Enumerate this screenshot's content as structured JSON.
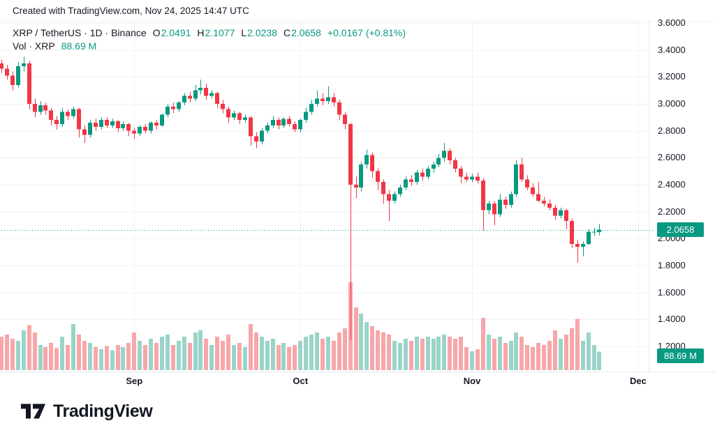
{
  "header": {
    "attribution": "Created with TradingView.com, Nov 24, 2025 14:47 UTC"
  },
  "legend": {
    "title": "XRP / TetherUS · 1D · Binance",
    "ohlc": [
      {
        "label": "O",
        "value": "2.0491"
      },
      {
        "label": "H",
        "value": "2.1077"
      },
      {
        "label": "L",
        "value": "2.0238"
      },
      {
        "label": "C",
        "value": "2.0658"
      }
    ],
    "change": "+0.0167 (+0.81%)",
    "vol_label": "Vol · XRP",
    "vol_value": "88.69 M"
  },
  "price_axis": {
    "ticks": [
      "3.6000",
      "3.4000",
      "3.2000",
      "3.0000",
      "2.8000",
      "2.6000",
      "2.4000",
      "2.2000",
      "2.0000",
      "1.8000",
      "1.6000",
      "1.4000",
      "1.2000"
    ],
    "last_price_label": "2.0658",
    "last_volume_label": "88.69 M"
  },
  "time_axis": {
    "months": [
      {
        "label": "Sep",
        "index": 24
      },
      {
        "label": "Oct",
        "index": 54
      },
      {
        "label": "Nov",
        "index": 85
      },
      {
        "label": "Dec",
        "index": 115
      }
    ]
  },
  "logo": {
    "text": "TradingView"
  },
  "chart_data": {
    "type": "candlestick",
    "title": "XRP / TetherUS · 1D · Binance",
    "y_axis_range": [
      1.2,
      3.6
    ],
    "y_tick_step": 0.2,
    "grid": true,
    "last_price": 2.0658,
    "last_volume_millions": 88.69,
    "volume_overlay": true,
    "colors": {
      "up": "#089981",
      "down": "#f23645",
      "vol_up": "#9ad4c9",
      "vol_down": "#f7a6a9",
      "grid": "#f0f2f6",
      "price_line": "#089981",
      "label_bg": "#089981",
      "text": "#131722"
    },
    "candles_format": [
      "date",
      "open",
      "high",
      "low",
      "close",
      "volume_millions"
    ],
    "candles": [
      [
        "Aug 8",
        3.3,
        3.33,
        3.23,
        3.26,
        160
      ],
      [
        "Aug 9",
        3.26,
        3.29,
        3.18,
        3.21,
        170
      ],
      [
        "Aug 10",
        3.21,
        3.24,
        3.1,
        3.14,
        150
      ],
      [
        "Aug 11",
        3.14,
        3.31,
        3.12,
        3.28,
        140
      ],
      [
        "Aug 12",
        3.28,
        3.35,
        3.24,
        3.3,
        190
      ],
      [
        "Aug 13",
        3.3,
        3.32,
        2.96,
        3.0,
        215
      ],
      [
        "Aug 14",
        3.0,
        3.04,
        2.9,
        2.94,
        180
      ],
      [
        "Aug 15",
        2.94,
        3.02,
        2.92,
        2.99,
        120
      ],
      [
        "Aug 16",
        2.99,
        3.01,
        2.92,
        2.95,
        110
      ],
      [
        "Aug 17",
        2.95,
        2.97,
        2.84,
        2.88,
        130
      ],
      [
        "Aug 18",
        2.88,
        2.91,
        2.81,
        2.85,
        105
      ],
      [
        "Aug 19",
        2.85,
        2.97,
        2.83,
        2.94,
        160
      ],
      [
        "Aug 20",
        2.94,
        2.96,
        2.88,
        2.91,
        120
      ],
      [
        "Aug 21",
        2.91,
        2.98,
        2.89,
        2.96,
        220
      ],
      [
        "Aug 22",
        2.96,
        2.97,
        2.75,
        2.81,
        170
      ],
      [
        "Aug 23",
        2.81,
        2.84,
        2.71,
        2.77,
        140
      ],
      [
        "Aug 24",
        2.77,
        2.88,
        2.75,
        2.86,
        130
      ],
      [
        "Aug 25",
        2.86,
        2.89,
        2.8,
        2.83,
        110
      ],
      [
        "Aug 26",
        2.83,
        2.9,
        2.81,
        2.88,
        100
      ],
      [
        "Aug 27",
        2.88,
        2.9,
        2.82,
        2.84,
        115
      ],
      [
        "Aug 28",
        2.84,
        2.89,
        2.82,
        2.87,
        95
      ],
      [
        "Aug 29",
        2.87,
        2.88,
        2.79,
        2.82,
        120
      ],
      [
        "Aug 30",
        2.82,
        2.87,
        2.8,
        2.85,
        110
      ],
      [
        "Aug 31",
        2.85,
        2.86,
        2.76,
        2.8,
        130
      ],
      [
        "Sep 1",
        2.8,
        2.82,
        2.74,
        2.78,
        180
      ],
      [
        "Sep 2",
        2.78,
        2.84,
        2.76,
        2.83,
        140
      ],
      [
        "Sep 3",
        2.83,
        2.85,
        2.78,
        2.8,
        120
      ],
      [
        "Sep 4",
        2.8,
        2.87,
        2.78,
        2.86,
        150
      ],
      [
        "Sep 5",
        2.86,
        2.88,
        2.81,
        2.84,
        130
      ],
      [
        "Sep 6",
        2.84,
        2.93,
        2.83,
        2.92,
        160
      ],
      [
        "Sep 7",
        2.92,
        3.0,
        2.9,
        2.98,
        170
      ],
      [
        "Sep 8",
        2.98,
        3.01,
        2.93,
        2.96,
        120
      ],
      [
        "Sep 9",
        2.96,
        3.02,
        2.94,
        3.01,
        140
      ],
      [
        "Sep 10",
        3.01,
        3.08,
        2.99,
        3.06,
        160
      ],
      [
        "Sep 11",
        3.06,
        3.09,
        3.01,
        3.04,
        130
      ],
      [
        "Sep 12",
        3.04,
        3.14,
        3.02,
        3.1,
        180
      ],
      [
        "Sep 13",
        3.1,
        3.18,
        3.07,
        3.12,
        190
      ],
      [
        "Sep 14",
        3.12,
        3.15,
        3.03,
        3.06,
        150
      ],
      [
        "Sep 15",
        3.06,
        3.1,
        3.04,
        3.08,
        120
      ],
      [
        "Sep 16",
        3.08,
        3.09,
        2.97,
        3.0,
        160
      ],
      [
        "Sep 17",
        3.0,
        3.03,
        2.93,
        2.96,
        140
      ],
      [
        "Sep 18",
        2.96,
        2.98,
        2.86,
        2.9,
        170
      ],
      [
        "Sep 19",
        2.9,
        2.95,
        2.88,
        2.93,
        120
      ],
      [
        "Sep 20",
        2.93,
        2.94,
        2.85,
        2.88,
        130
      ],
      [
        "Sep 21",
        2.88,
        2.92,
        2.86,
        2.9,
        110
      ],
      [
        "Sep 22",
        2.9,
        2.91,
        2.69,
        2.76,
        220
      ],
      [
        "Sep 23",
        2.76,
        2.79,
        2.67,
        2.72,
        180
      ],
      [
        "Sep 24",
        2.72,
        2.82,
        2.7,
        2.8,
        160
      ],
      [
        "Sep 25",
        2.8,
        2.86,
        2.78,
        2.84,
        140
      ],
      [
        "Sep 26",
        2.84,
        2.91,
        2.82,
        2.88,
        150
      ],
      [
        "Sep 27",
        2.88,
        2.9,
        2.81,
        2.84,
        120
      ],
      [
        "Sep 28",
        2.84,
        2.9,
        2.82,
        2.89,
        130
      ],
      [
        "Sep 29",
        2.89,
        2.91,
        2.83,
        2.85,
        110
      ],
      [
        "Sep 30",
        2.85,
        2.87,
        2.79,
        2.81,
        120
      ],
      [
        "Oct 1",
        2.81,
        2.89,
        2.79,
        2.88,
        140
      ],
      [
        "Oct 2",
        2.88,
        2.97,
        2.86,
        2.94,
        160
      ],
      [
        "Oct 3",
        2.94,
        3.03,
        2.92,
        3.0,
        170
      ],
      [
        "Oct 4",
        3.0,
        3.1,
        2.98,
        3.04,
        180
      ],
      [
        "Oct 5",
        3.04,
        3.08,
        2.99,
        3.02,
        150
      ],
      [
        "Oct 6",
        3.02,
        3.13,
        3.0,
        3.05,
        160
      ],
      [
        "Oct 7",
        3.05,
        3.08,
        2.98,
        3.01,
        140
      ],
      [
        "Oct 8",
        3.01,
        3.03,
        2.88,
        2.92,
        180
      ],
      [
        "Oct 9",
        2.92,
        2.94,
        2.81,
        2.85,
        200
      ],
      [
        "Oct 10",
        2.85,
        2.86,
        1.25,
        2.4,
        420
      ],
      [
        "Oct 11",
        2.4,
        2.46,
        2.3,
        2.38,
        300
      ],
      [
        "Oct 12",
        2.38,
        2.57,
        2.35,
        2.55,
        270
      ],
      [
        "Oct 13",
        2.55,
        2.66,
        2.52,
        2.62,
        230
      ],
      [
        "Oct 14",
        2.62,
        2.64,
        2.45,
        2.5,
        210
      ],
      [
        "Oct 15",
        2.5,
        2.52,
        2.36,
        2.42,
        190
      ],
      [
        "Oct 16",
        2.42,
        2.44,
        2.26,
        2.33,
        180
      ],
      [
        "Oct 17",
        2.33,
        2.36,
        2.13,
        2.28,
        170
      ],
      [
        "Oct 18",
        2.28,
        2.35,
        2.26,
        2.33,
        140
      ],
      [
        "Oct 19",
        2.33,
        2.4,
        2.31,
        2.38,
        130
      ],
      [
        "Oct 20",
        2.38,
        2.46,
        2.36,
        2.44,
        150
      ],
      [
        "Oct 21",
        2.44,
        2.47,
        2.39,
        2.42,
        140
      ],
      [
        "Oct 22",
        2.42,
        2.51,
        2.4,
        2.49,
        160
      ],
      [
        "Oct 23",
        2.49,
        2.52,
        2.43,
        2.46,
        150
      ],
      [
        "Oct 24",
        2.46,
        2.54,
        2.44,
        2.52,
        160
      ],
      [
        "Oct 25",
        2.52,
        2.57,
        2.49,
        2.55,
        150
      ],
      [
        "Oct 26",
        2.55,
        2.63,
        2.53,
        2.6,
        160
      ],
      [
        "Oct 27",
        2.6,
        2.71,
        2.57,
        2.65,
        170
      ],
      [
        "Oct 28",
        2.65,
        2.67,
        2.55,
        2.58,
        160
      ],
      [
        "Oct 29",
        2.58,
        2.6,
        2.49,
        2.52,
        150
      ],
      [
        "Oct 30",
        2.52,
        2.54,
        2.41,
        2.46,
        160
      ],
      [
        "Oct 31",
        2.46,
        2.49,
        2.42,
        2.44,
        110
      ],
      [
        "Nov 1",
        2.44,
        2.48,
        2.42,
        2.46,
        90
      ],
      [
        "Nov 2",
        2.46,
        2.49,
        2.41,
        2.43,
        100
      ],
      [
        "Nov 3",
        2.43,
        2.45,
        2.06,
        2.21,
        250
      ],
      [
        "Nov 4",
        2.21,
        2.28,
        2.18,
        2.26,
        170
      ],
      [
        "Nov 5",
        2.26,
        2.28,
        2.1,
        2.18,
        150
      ],
      [
        "Nov 6",
        2.18,
        2.33,
        2.16,
        2.29,
        160
      ],
      [
        "Nov 7",
        2.29,
        2.31,
        2.22,
        2.25,
        130
      ],
      [
        "Nov 8",
        2.25,
        2.35,
        2.23,
        2.33,
        140
      ],
      [
        "Nov 9",
        2.33,
        2.58,
        2.31,
        2.55,
        180
      ],
      [
        "Nov 10",
        2.55,
        2.6,
        2.42,
        2.44,
        160
      ],
      [
        "Nov 11",
        2.44,
        2.47,
        2.36,
        2.38,
        120
      ],
      [
        "Nov 12",
        2.38,
        2.41,
        2.31,
        2.33,
        110
      ],
      [
        "Nov 13",
        2.33,
        2.42,
        2.27,
        2.28,
        130
      ],
      [
        "Nov 14",
        2.28,
        2.31,
        2.24,
        2.26,
        120
      ],
      [
        "Nov 15",
        2.26,
        2.29,
        2.21,
        2.23,
        140
      ],
      [
        "Nov 16",
        2.23,
        2.25,
        2.14,
        2.17,
        190
      ],
      [
        "Nov 17",
        2.17,
        2.23,
        2.15,
        2.21,
        150
      ],
      [
        "Nov 18",
        2.21,
        2.22,
        2.07,
        2.13,
        170
      ],
      [
        "Nov 19",
        2.13,
        2.15,
        1.93,
        1.96,
        200
      ],
      [
        "Nov 20",
        1.96,
        1.99,
        1.82,
        1.94,
        245
      ],
      [
        "Nov 21",
        1.94,
        1.98,
        1.87,
        1.96,
        140
      ],
      [
        "Nov 22",
        1.96,
        2.07,
        1.95,
        2.05,
        180
      ],
      [
        "Nov 23",
        2.05,
        2.08,
        2.02,
        2.05,
        120
      ],
      [
        "Nov 24",
        2.0491,
        2.1077,
        2.0238,
        2.0658,
        88.69
      ]
    ]
  }
}
